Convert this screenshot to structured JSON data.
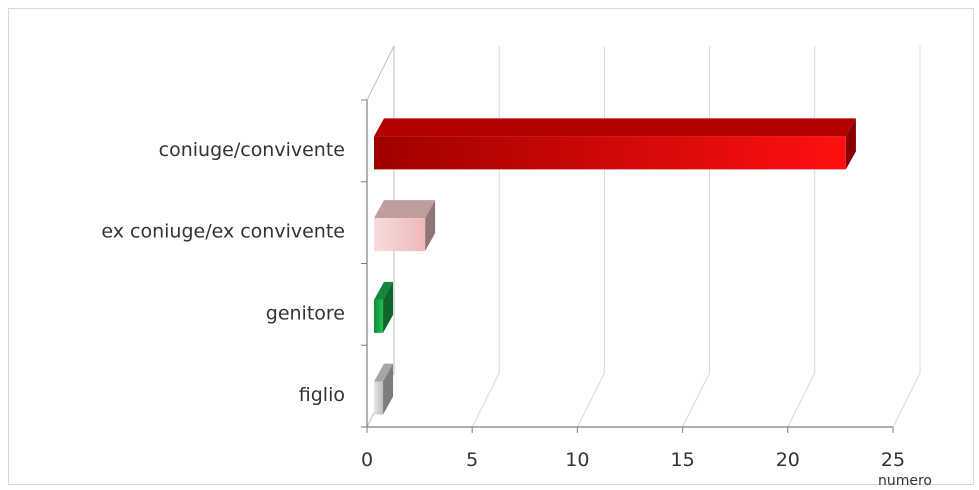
{
  "chart_data": {
    "type": "bar",
    "orientation": "horizontal",
    "three_d": true,
    "categories": [
      "coniuge/convivente",
      "ex coniuge/ex convivente",
      "genitore",
      "figlio"
    ],
    "values": [
      23,
      3,
      1,
      1
    ],
    "colors": [
      "#e00000",
      "#f0c4c4",
      "#1aa84a",
      "#cfcfcf"
    ],
    "xlabel": "numero",
    "xlim": [
      0,
      25
    ],
    "xticks": [
      0,
      5,
      10,
      15,
      20,
      25
    ],
    "grid": true,
    "legend": "none"
  }
}
